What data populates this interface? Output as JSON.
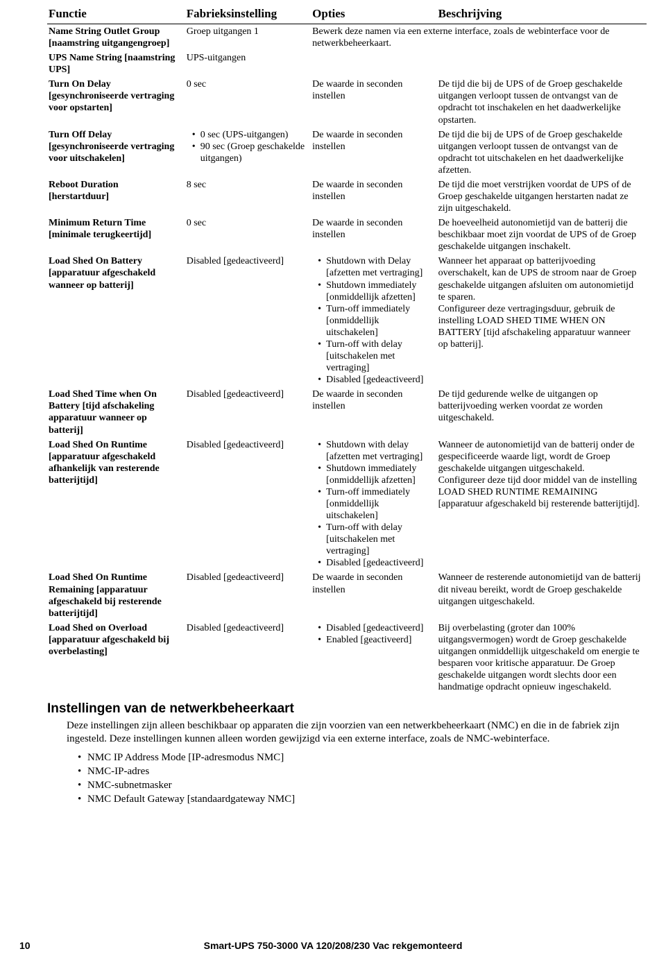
{
  "table": {
    "headers": [
      "Functie",
      "Fabrieksinstelling",
      "Opties",
      "Beschrijving"
    ],
    "colwidths": [
      "23%",
      "21%",
      "21%",
      "35%"
    ],
    "rows": [
      {
        "fn": "Name String Outlet Group [naamstring uitgangengroep]",
        "def": "Groep uitgangen 1",
        "opt_plain": "",
        "desc": ""
      },
      {
        "fn": "UPS Name String [naamstring UPS]",
        "def": "UPS-uitgangen",
        "opt_plain": "",
        "desc": ""
      },
      {
        "fn": "Turn On Delay [gesynchroniseerde vertraging voor opstarten]",
        "def": "0 sec",
        "opt_plain": "De waarde in seconden instellen",
        "desc": "De tijd die bij de UPS of de Groep geschakelde uitgangen verloopt tussen de ontvangst van de opdracht tot inschakelen en het daadwerkelijke opstarten."
      },
      {
        "fn": "Turn Off Delay [gesynchroniseerde vertraging voor uitschakelen]",
        "def_list": [
          "0 sec (UPS-uitgangen)",
          "90 sec (Groep geschakelde uitgangen)"
        ],
        "opt_plain": "De waarde in seconden instellen",
        "desc": "De tijd die bij de UPS of de Groep geschakelde uitgangen verloopt tussen de ontvangst van de opdracht tot uitschakelen en het daadwerkelijke afzetten."
      },
      {
        "fn": "Reboot Duration [herstartduur]",
        "def": "8 sec",
        "opt_plain": "De waarde in seconden instellen",
        "desc": "De tijd die moet verstrijken voordat de UPS of de Groep geschakelde uitgangen herstarten nadat ze zijn uitgeschakeld."
      },
      {
        "fn": "Minimum Return Time [minimale terugkeertijd]",
        "def": "0 sec",
        "opt_plain": "De waarde in seconden instellen",
        "desc": "De hoeveelheid autonomietijd van de batterij die beschikbaar moet zijn voordat de UPS of de Groep geschakelde uitgangen inschakelt."
      },
      {
        "fn": "Load Shed On Battery [apparatuur afgeschakeld wanneer op batterij]",
        "def": "Disabled [gedeactiveerd]",
        "opt_list": [
          "Shutdown with Delay [afzetten met vertraging]",
          "Shutdown immediately [onmiddellijk afzetten]",
          "Turn-off immediately [onmiddellijk uitschakelen]",
          "Turn-off with delay [uitschakelen met vertraging]",
          "Disabled [gedeactiveerd]"
        ],
        "desc": "Wanneer het apparaat op batterijvoeding overschakelt, kan de UPS de stroom naar de Groep geschakelde uitgangen afsluiten om autonomietijd te sparen.",
        "desc2": "Configureer deze vertragingsduur, gebruik de instelling LOAD SHED TIME WHEN ON BATTERY [tijd afschakeling apparatuur wanneer op batterij]."
      },
      {
        "fn": "Load Shed Time when On Battery [tijd afschakeling apparatuur wanneer op batterij]",
        "def": "Disabled [gedeactiveerd]",
        "opt_plain": "De waarde in seconden instellen",
        "desc": "De tijd gedurende welke de uitgangen op batterijvoeding werken voordat ze worden uitgeschakeld."
      },
      {
        "fn": "Load Shed On Runtime [apparatuur afgeschakeld afhankelijk van resterende batterijtijd]",
        "def": "Disabled [gedeactiveerd]",
        "opt_list": [
          "Shutdown with delay [afzetten met vertraging]",
          "Shutdown immediately [onmiddellijk afzetten]",
          "Turn-off immediately [onmiddellijk uitschakelen]",
          "Turn-off with delay [uitschakelen met vertraging]",
          "Disabled [gedeactiveerd]"
        ],
        "desc": "Wanneer de autonomietijd van de batterij onder de gespecificeerde waarde ligt, wordt de Groep geschakelde uitgangen uitgeschakeld.",
        "desc2": "Configureer deze tijd door middel van de instelling LOAD SHED RUNTIME REMAINING [apparatuur afgeschakeld bij resterende batterijtijd]."
      },
      {
        "fn": "Load Shed On Runtime Remaining [apparatuur afgeschakeld bij resterende batterijtijd]",
        "def": "Disabled [gedeactiveerd]",
        "opt_plain": "De waarde in seconden instellen",
        "desc": "Wanneer de resterende autonomietijd van de batterij dit niveau bereikt, wordt de Groep geschakelde uitgangen uitgeschakeld."
      },
      {
        "fn": "Load Shed on Overload [apparatuur afgeschakeld bij overbelasting]",
        "def": "Disabled [gedeactiveerd]",
        "opt_list": [
          "Disabled [gedeactiveerd]",
          "Enabled [geactiveerd]"
        ],
        "desc": "Bij overbelasting (groter dan 100% uitgangsvermogen) wordt de Groep geschakelde uitgangen onmiddellijk uitgeschakeld om energie te besparen voor kritische apparatuur. De Groep geschakelde uitgangen wordt slechts door een handmatige opdracht opnieuw ingeschakeld."
      }
    ],
    "merged_note": "Bewerk deze namen via een externe interface, zoals de webinterface voor de netwerkbeheerkaart."
  },
  "section_title": "Instellingen van de netwerkbeheerkaart",
  "section_body": "Deze instellingen zijn alleen beschikbaar op apparaten die zijn voorzien van een netwerkbeheerkaart (NMC) en die in de fabriek zijn ingesteld. Deze instellingen kunnen alleen worden gewijzigd via een externe interface, zoals de NMC-webinterface.",
  "nmc_items": [
    "NMC IP Address Mode [IP-adresmodus NMC]",
    "NMC-IP-adres",
    "NMC-subnetmasker",
    "NMC Default Gateway [standaardgateway NMC]"
  ],
  "footer": {
    "page_number": "10",
    "title": "Smart-UPS 750-3000 VA 120/208/230 Vac rekgemonteerd"
  }
}
